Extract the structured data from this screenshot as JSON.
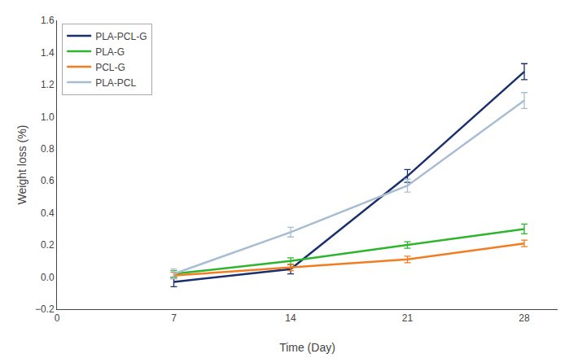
{
  "chart_data": {
    "type": "line",
    "xlabel": "Time (Day)",
    "ylabel": "Weight loss (%)",
    "x": [
      7,
      14,
      21,
      28
    ],
    "series": [
      {
        "name": "PLA-PCL-G",
        "color": "#1a2f6e",
        "values": [
          -0.03,
          0.05,
          0.63,
          1.28
        ],
        "errors": [
          0.03,
          0.03,
          0.04,
          0.05
        ]
      },
      {
        "name": "PLA-G",
        "color": "#2db52d",
        "values": [
          0.02,
          0.1,
          0.2,
          0.3
        ],
        "errors": [
          0.02,
          0.02,
          0.02,
          0.03
        ]
      },
      {
        "name": "PCL-G",
        "color": "#f47c20",
        "values": [
          0.01,
          0.06,
          0.11,
          0.21
        ],
        "errors": [
          0.02,
          0.02,
          0.02,
          0.02
        ]
      },
      {
        "name": "PLA-PCL",
        "color": "#a8bcd4",
        "values": [
          0.02,
          0.28,
          0.57,
          1.1
        ],
        "errors": [
          0.03,
          0.03,
          0.04,
          0.05
        ]
      }
    ],
    "xlim": [
      0,
      30
    ],
    "ylim": [
      -0.2,
      1.6
    ],
    "xticks": [
      0,
      7,
      14,
      21,
      28
    ],
    "yticks": [
      {
        "value": -0.2,
        "label": "−0.2"
      },
      {
        "value": 0.0,
        "label": "0.0"
      },
      0.2,
      0.4,
      0.6,
      0.8,
      {
        "value": 1.0,
        "label": "1.0"
      },
      1.2,
      1.4,
      1.6
    ],
    "grid": false,
    "legend": "upper left",
    "marker": "none"
  }
}
